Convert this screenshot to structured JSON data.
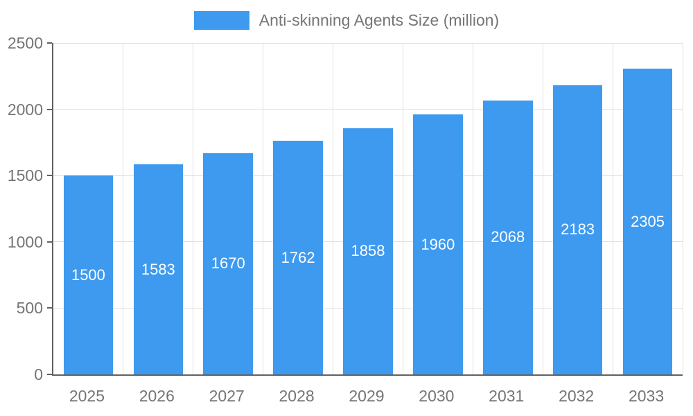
{
  "colors": {
    "bar": "#3E9AEF",
    "axis_line": "#616161",
    "gridline": "#e0e0e0",
    "tick_label": "#757575",
    "bar_value_label": "#ffffff"
  },
  "legend": {
    "label": "Anti-skinning Agents Size (million)"
  },
  "chart_data": {
    "type": "bar",
    "title": "Anti-skinning Agents Size (million)",
    "categories": [
      "2025",
      "2026",
      "2027",
      "2028",
      "2029",
      "2030",
      "2031",
      "2032",
      "2033"
    ],
    "values": [
      1500,
      1583,
      1670,
      1762,
      1858,
      1960,
      2068,
      2183,
      2305
    ],
    "series_name": "Anti-skinning Agents Size (million)",
    "xlabel": "",
    "ylabel": "",
    "ylim": [
      0,
      2500
    ],
    "yticks": [
      0,
      500,
      1000,
      1500,
      2000,
      2500
    ],
    "grid": true,
    "legend_position": "top",
    "value_labels": "inside-center"
  }
}
